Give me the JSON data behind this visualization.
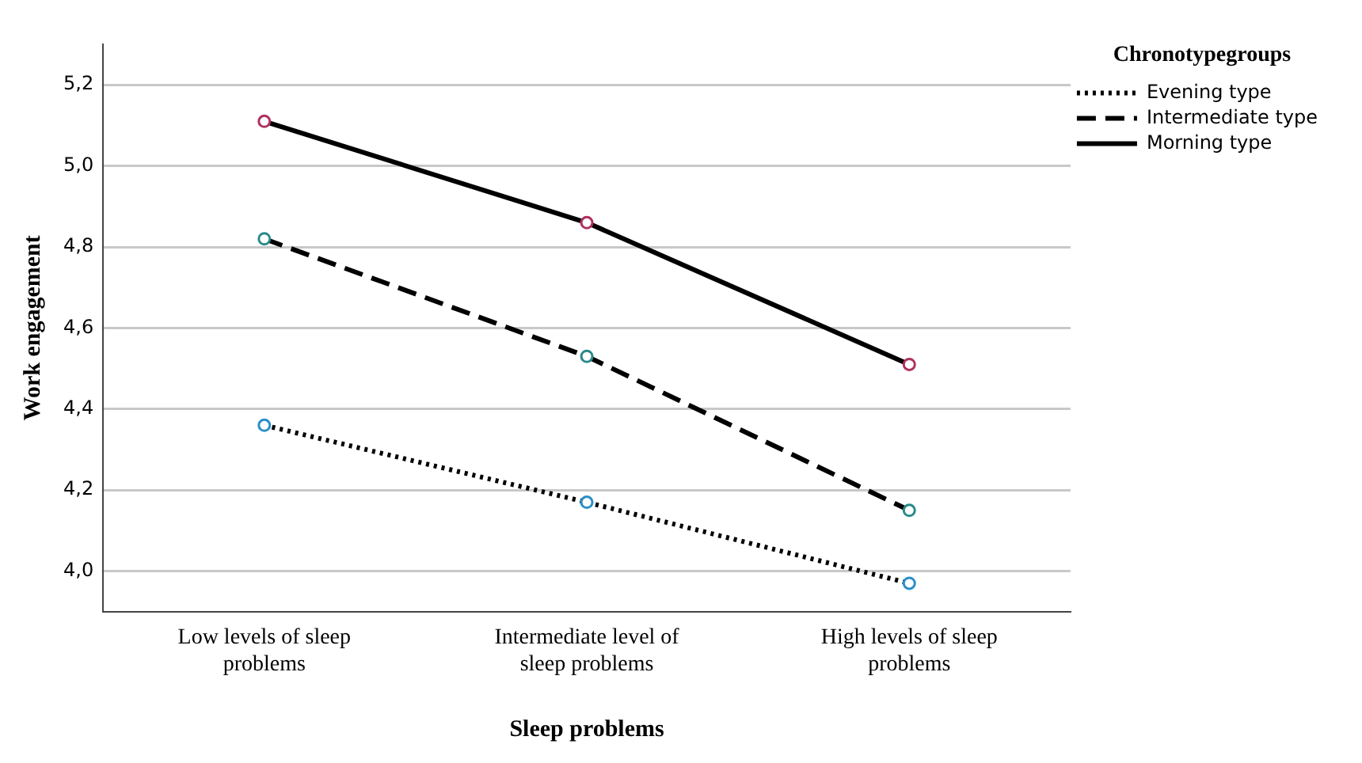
{
  "chart_data": {
    "type": "line",
    "xlabel": "Sleep problems",
    "ylabel": "Work engagement",
    "legend_title": "Chronotypegroups",
    "categories": [
      "Low levels of sleep problems",
      "Intermediate level of sleep problems",
      "High levels of sleep problems"
    ],
    "series": [
      {
        "name": "Evening type",
        "color": "#000000",
        "colors": [
          "#2a8fc8",
          "#2a8fc8",
          "#2a8fc8"
        ],
        "line_style": "dotted",
        "values": [
          4.36,
          4.17,
          3.97
        ]
      },
      {
        "name": "Intermediate type",
        "color": "#000000",
        "colors": [
          "#2a8a8a",
          "#2a8a8a",
          "#2a8a8a"
        ],
        "line_style": "dashed",
        "values": [
          4.82,
          4.53,
          4.15
        ]
      },
      {
        "name": "Morning type",
        "color": "#000000",
        "colors": [
          "#b03060",
          "#b03060",
          "#b03060"
        ],
        "line_style": "solid",
        "values": [
          5.11,
          4.86,
          4.51
        ]
      }
    ],
    "ylim": [
      3.9,
      5.3
    ],
    "yticks": [
      {
        "value": 4,
        "label": "4,0"
      },
      {
        "value": 4.2,
        "label": "4,2"
      },
      {
        "value": 4.4,
        "label": "4,4"
      },
      {
        "value": 4.6,
        "label": "4,6"
      },
      {
        "value": 4.8,
        "label": "4,8"
      },
      {
        "value": 5,
        "label": "5,0"
      },
      {
        "value": 5.2,
        "label": "5,2"
      }
    ],
    "grid": "y",
    "legend": "top right",
    "marker": "circle"
  }
}
